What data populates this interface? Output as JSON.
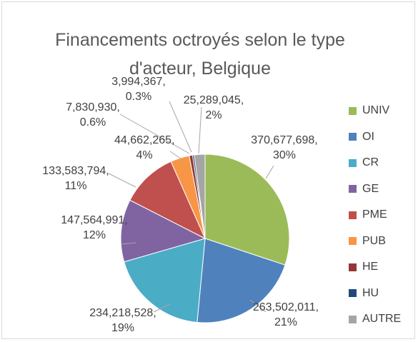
{
  "chart_data": {
    "type": "pie",
    "title": "Financements octroyés selon le type d'acteur, Belgique",
    "categories": [
      "UNIV",
      "OI",
      "CR",
      "GE",
      "PME",
      "PUB",
      "HE",
      "HU",
      "AUTRE"
    ],
    "values": [
      370677698,
      263502011,
      234218528,
      147564991,
      133583794,
      44662265,
      7830930,
      3994367,
      25289045
    ],
    "value_labels": [
      "370,677,698, 30%",
      "263,502,011, 21%",
      "234,218,528, 19%",
      "147,564,991, 12%",
      "133,583,794, 11%",
      "44,662,265, 4%",
      "7,830,930, 0.6%",
      "3,994,367, 0.3%",
      "25,289,045, 2%"
    ],
    "colors": [
      "#9bbb59",
      "#4f81bd",
      "#4bacc6",
      "#8064a2",
      "#c0504d",
      "#f79646",
      "#943634",
      "#1f497d",
      "#a5a5a5"
    ],
    "legend": "right"
  }
}
